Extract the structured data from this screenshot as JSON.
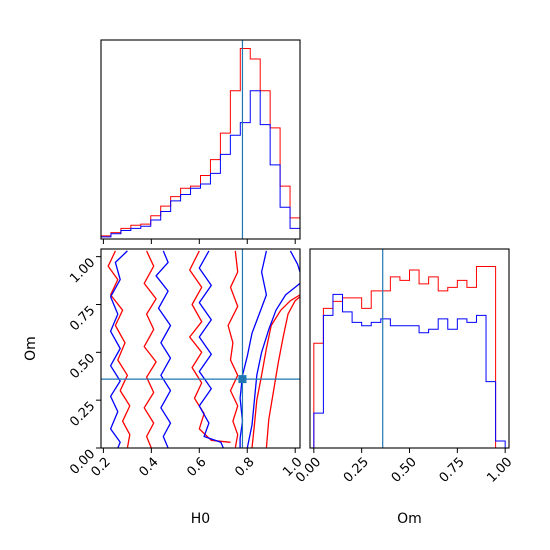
{
  "chart_data": {
    "type": "corner",
    "parameters": [
      "H0",
      "Om"
    ],
    "truth": {
      "H0": 0.78,
      "Om": 0.36
    },
    "colors": {
      "series_a": "#ff0000",
      "series_b": "#0000ff",
      "truth": "#1f77b4"
    },
    "panels": [
      {
        "id": "hist_h0",
        "type": "histogram",
        "param": "H0",
        "xlim": [
          0.19,
          1.02
        ],
        "x_ticks_labeled": false,
        "bin_edges": [
          0.19,
          0.2315,
          0.273,
          0.3145,
          0.356,
          0.3975,
          0.439,
          0.4805,
          0.522,
          0.5635,
          0.605,
          0.6465,
          0.688,
          0.7295,
          0.771,
          0.8125,
          0.854,
          0.8955,
          0.937,
          0.9785,
          1.02
        ],
        "series": [
          {
            "color": "#ff0000",
            "counts": [
              3,
              6,
              10,
              13,
              14,
              22,
              31,
              40,
              48,
              50,
              60,
              75,
              100,
              140,
              180,
              170,
              140,
              105,
              50,
              20
            ]
          },
          {
            "color": "#0000ff",
            "counts": [
              2,
              5,
              8,
              10,
              12,
              18,
              26,
              36,
              42,
              48,
              52,
              62,
              80,
              98,
              110,
              140,
              108,
              70,
              30,
              10
            ]
          }
        ]
      },
      {
        "id": "hist_om",
        "type": "histogram",
        "param": "Om",
        "xlim": [
          -0.02,
          1.02
        ],
        "x_ticks": [
          0.0,
          0.25,
          0.5,
          0.75,
          1.0
        ],
        "x_tick_labels": [
          "0.00",
          "0.25",
          "0.50",
          "0.75",
          "1.00"
        ],
        "xlabel": "Om",
        "bin_edges": [
          0.0,
          0.05,
          0.1,
          0.15,
          0.2,
          0.25,
          0.3,
          0.35,
          0.4,
          0.45,
          0.5,
          0.55,
          0.6,
          0.65,
          0.7,
          0.75,
          0.8,
          0.85,
          0.9,
          0.95,
          1.0
        ],
        "series": [
          {
            "color": "#ff0000",
            "counts": [
              150,
              200,
              210,
              215,
              215,
              200,
              225,
              225,
              245,
              240,
              255,
              235,
              245,
              225,
              230,
              240,
              230,
              260,
              260,
              0
            ]
          },
          {
            "color": "#0000ff",
            "counts": [
              50,
              190,
              220,
              195,
              180,
              175,
              180,
              185,
              175,
              175,
              175,
              165,
              170,
              185,
              170,
              185,
              180,
              190,
              95,
              10
            ]
          }
        ]
      },
      {
        "id": "contour_h0_om",
        "type": "contour",
        "xparam": "H0",
        "yparam": "Om",
        "xlim": [
          0.19,
          1.02
        ],
        "ylim": [
          0.0,
          1.04
        ],
        "x_ticks": [
          0.2,
          0.4,
          0.6,
          0.8,
          1.0
        ],
        "x_tick_labels": [
          "0.2",
          "0.4",
          "0.6",
          "0.8",
          "1.0"
        ],
        "y_ticks": [
          0.0,
          0.25,
          0.5,
          0.75,
          1.0
        ],
        "y_tick_labels": [
          "0.00",
          "0.25",
          "0.50",
          "0.75",
          "1.00"
        ],
        "xlabel": "H0",
        "ylabel": "Om",
        "contours": [
          {
            "color": "#ff0000",
            "points": [
              [
                0.25,
                1.03
              ],
              [
                0.22,
                0.95
              ],
              [
                0.26,
                0.88
              ],
              [
                0.23,
                0.8
              ],
              [
                0.28,
                0.72
              ],
              [
                0.25,
                0.64
              ],
              [
                0.29,
                0.55
              ],
              [
                0.26,
                0.46
              ],
              [
                0.3,
                0.38
              ],
              [
                0.27,
                0.3
              ],
              [
                0.31,
                0.22
              ],
              [
                0.28,
                0.14
              ],
              [
                0.31,
                0.07
              ],
              [
                0.3,
                0.0
              ]
            ]
          },
          {
            "color": "#ff0000",
            "points": [
              [
                0.38,
                1.03
              ],
              [
                0.41,
                0.95
              ],
              [
                0.37,
                0.86
              ],
              [
                0.42,
                0.78
              ],
              [
                0.38,
                0.7
              ],
              [
                0.41,
                0.62
              ],
              [
                0.37,
                0.53
              ],
              [
                0.42,
                0.45
              ],
              [
                0.38,
                0.37
              ],
              [
                0.41,
                0.29
              ],
              [
                0.37,
                0.21
              ],
              [
                0.41,
                0.13
              ],
              [
                0.38,
                0.06
              ],
              [
                0.4,
                0.0
              ]
            ]
          },
          {
            "color": "#ff0000",
            "points": [
              [
                0.6,
                1.03
              ],
              [
                0.56,
                0.93
              ],
              [
                0.61,
                0.84
              ],
              [
                0.57,
                0.75
              ],
              [
                0.61,
                0.66
              ],
              [
                0.56,
                0.58
              ],
              [
                0.61,
                0.5
              ],
              [
                0.57,
                0.42
              ],
              [
                0.61,
                0.34
              ],
              [
                0.58,
                0.26
              ],
              [
                0.62,
                0.18
              ],
              [
                0.6,
                0.1
              ],
              [
                0.65,
                0.04
              ],
              [
                0.73,
                0.03
              ]
            ]
          },
          {
            "color": "#ff0000",
            "points": [
              [
                0.75,
                1.03
              ],
              [
                0.76,
                0.92
              ],
              [
                0.73,
                0.84
              ],
              [
                0.76,
                0.74
              ],
              [
                0.72,
                0.64
              ],
              [
                0.74,
                0.55
              ],
              [
                0.73,
                0.46
              ],
              [
                0.76,
                0.38
              ],
              [
                0.73,
                0.3
              ],
              [
                0.76,
                0.22
              ],
              [
                0.74,
                0.14
              ],
              [
                0.76,
                0.07
              ],
              [
                0.75,
                0.0
              ]
            ]
          },
          {
            "color": "#ff0000",
            "points": [
              [
                0.82,
                0.0
              ],
              [
                0.83,
                0.12
              ],
              [
                0.84,
                0.25
              ],
              [
                0.86,
                0.38
              ],
              [
                0.88,
                0.52
              ],
              [
                0.9,
                0.64
              ],
              [
                0.94,
                0.72
              ],
              [
                0.98,
                0.77
              ],
              [
                1.02,
                0.8
              ]
            ]
          },
          {
            "color": "#ff0000",
            "points": [
              [
                0.88,
                0.0
              ],
              [
                0.89,
                0.15
              ],
              [
                0.91,
                0.3
              ],
              [
                0.93,
                0.45
              ],
              [
                0.95,
                0.58
              ],
              [
                0.97,
                0.7
              ],
              [
                1.0,
                0.77
              ],
              [
                1.02,
                0.79
              ]
            ]
          },
          {
            "color": "#0000ff",
            "points": [
              [
                0.3,
                1.03
              ],
              [
                0.25,
                0.97
              ],
              [
                0.27,
                0.88
              ],
              [
                0.23,
                0.79
              ],
              [
                0.26,
                0.7
              ],
              [
                0.23,
                0.61
              ],
              [
                0.27,
                0.52
              ],
              [
                0.23,
                0.43
              ],
              [
                0.27,
                0.35
              ],
              [
                0.23,
                0.27
              ],
              [
                0.26,
                0.19
              ],
              [
                0.23,
                0.1
              ],
              [
                0.27,
                0.03
              ],
              [
                0.26,
                0.0
              ]
            ]
          },
          {
            "color": "#0000ff",
            "points": [
              [
                0.45,
                1.03
              ],
              [
                0.47,
                0.97
              ],
              [
                0.42,
                0.9
              ],
              [
                0.47,
                0.82
              ],
              [
                0.43,
                0.73
              ],
              [
                0.48,
                0.64
              ],
              [
                0.44,
                0.55
              ],
              [
                0.48,
                0.47
              ],
              [
                0.44,
                0.38
              ],
              [
                0.48,
                0.3
              ],
              [
                0.44,
                0.21
              ],
              [
                0.48,
                0.13
              ],
              [
                0.45,
                0.06
              ],
              [
                0.47,
                0.0
              ]
            ]
          },
          {
            "color": "#0000ff",
            "points": [
              [
                0.64,
                1.03
              ],
              [
                0.6,
                0.94
              ],
              [
                0.65,
                0.85
              ],
              [
                0.6,
                0.76
              ],
              [
                0.65,
                0.67
              ],
              [
                0.6,
                0.58
              ],
              [
                0.65,
                0.49
              ],
              [
                0.6,
                0.4
              ],
              [
                0.65,
                0.31
              ],
              [
                0.6,
                0.22
              ],
              [
                0.64,
                0.13
              ],
              [
                0.62,
                0.06
              ],
              [
                0.69,
                0.03
              ],
              [
                0.7,
                0.0
              ]
            ]
          },
          {
            "color": "#0000ff",
            "points": [
              [
                0.88,
                1.03
              ],
              [
                0.86,
                0.92
              ],
              [
                0.88,
                0.8
              ],
              [
                0.85,
                0.7
              ],
              [
                0.82,
                0.6
              ],
              [
                0.8,
                0.48
              ],
              [
                0.78,
                0.38
              ],
              [
                0.77,
                0.26
              ],
              [
                0.78,
                0.14
              ],
              [
                0.77,
                0.05
              ],
              [
                0.77,
                0.0
              ]
            ]
          },
          {
            "color": "#0000ff",
            "points": [
              [
                0.8,
                0.0
              ],
              [
                0.82,
                0.12
              ],
              [
                0.83,
                0.25
              ],
              [
                0.84,
                0.38
              ],
              [
                0.86,
                0.5
              ],
              [
                0.89,
                0.62
              ],
              [
                0.92,
                0.72
              ],
              [
                0.96,
                0.8
              ],
              [
                1.0,
                0.84
              ],
              [
                1.02,
                0.86
              ]
            ]
          },
          {
            "color": "#0000ff",
            "points": [
              [
                0.98,
                1.03
              ],
              [
                1.01,
                0.96
              ],
              [
                1.02,
                0.92
              ]
            ]
          }
        ]
      }
    ]
  }
}
